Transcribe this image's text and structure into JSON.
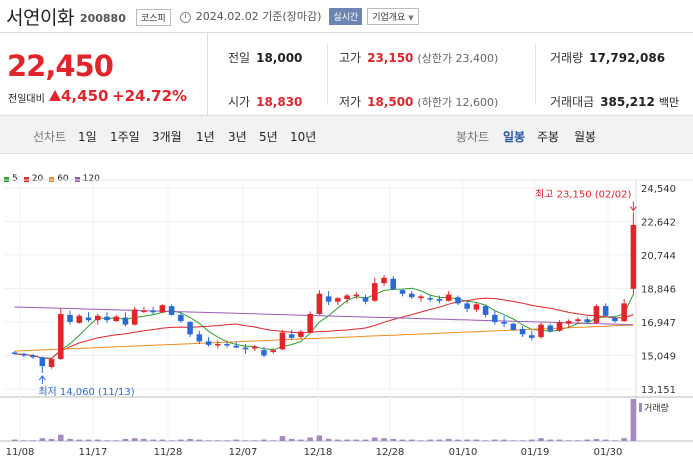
{
  "header": {
    "stock_name": "서연이화",
    "stock_code": "200880",
    "market": "코스피",
    "date": "2024.02.02 기준(장마감)",
    "realtime_label": "실시간",
    "company_info_label": "기업개요"
  },
  "price": {
    "current": "22,450",
    "change_label": "전일대비",
    "change": "4,450",
    "change_pct": "+24.72%"
  },
  "stats": {
    "prev_label": "전일",
    "prev": "18,000",
    "high_label": "고가",
    "high": "23,150",
    "upper_limit": "(상한가 23,400)",
    "volume_label": "거래량",
    "volume": "17,792,086",
    "open_label": "시가",
    "open": "18,830",
    "low_label": "저가",
    "low": "18,500",
    "lower_limit": "(하한가 12,600)",
    "value_label": "거래대금",
    "value": "385,212",
    "value_unit": "백만"
  },
  "period_bar": {
    "line_chart_label": "선차트",
    "periods": [
      "1일",
      "1주일",
      "3개월",
      "1년",
      "3년",
      "5년",
      "10년"
    ],
    "candle_chart_label": "봉차트",
    "candle_periods": [
      "일봉",
      "주봉",
      "월봉"
    ],
    "selected_candle": "일봉"
  },
  "legend": [
    {
      "label": "5",
      "color": "#2ca02c"
    },
    {
      "label": "20",
      "color": "#e3242b"
    },
    {
      "label": "60",
      "color": "#f08c1a"
    },
    {
      "label": "120",
      "color": "#9b59b6"
    }
  ],
  "chart_data": {
    "type": "candlestick",
    "y_ticks": [
      24540,
      22642,
      20744,
      18846,
      16947,
      15049,
      13151
    ],
    "ylim": [
      13151,
      24540
    ],
    "x_ticks": [
      "11/08",
      "11/17",
      "11/28",
      "12/07",
      "12/18",
      "12/28",
      "01/10",
      "01/19",
      "01/30"
    ],
    "high_annotation": "최고 23,150 (02/02)",
    "low_annotation": "최저 14,060 (11/13)",
    "volume_label": "거래량",
    "candles": [
      [
        15220,
        15300,
        15100,
        15150
      ],
      [
        15150,
        15200,
        14950,
        15050
      ],
      [
        15050,
        15150,
        14850,
        14950
      ],
      [
        14950,
        15000,
        14060,
        14450
      ],
      [
        14400,
        14900,
        14300,
        14850
      ],
      [
        14850,
        17700,
        14800,
        17400
      ],
      [
        17350,
        17600,
        16800,
        16950
      ],
      [
        16900,
        17400,
        16850,
        17300
      ],
      [
        17200,
        17500,
        16950,
        17050
      ],
      [
        17050,
        17400,
        16800,
        17300
      ],
      [
        17250,
        17500,
        16900,
        17050
      ],
      [
        17000,
        17350,
        16950,
        17250
      ],
      [
        17200,
        17500,
        16700,
        16800
      ],
      [
        16800,
        17800,
        16750,
        17650
      ],
      [
        17550,
        17800,
        17450,
        17600
      ],
      [
        17600,
        17800,
        17350,
        17500
      ],
      [
        17500,
        17950,
        17450,
        17900
      ],
      [
        17850,
        17950,
        17300,
        17350
      ],
      [
        17350,
        17500,
        16900,
        17000
      ],
      [
        16950,
        17000,
        16100,
        16250
      ],
      [
        16250,
        16450,
        15700,
        15850
      ],
      [
        15850,
        16100,
        15550,
        15650
      ],
      [
        15650,
        15900,
        15450,
        15700
      ],
      [
        15700,
        15900,
        15500,
        15650
      ],
      [
        15600,
        15850,
        15450,
        15500
      ],
      [
        15500,
        15700,
        15150,
        15400
      ],
      [
        15450,
        15650,
        15300,
        15550
      ],
      [
        15350,
        15550,
        14950,
        15050
      ],
      [
        15250,
        15450,
        15150,
        15350
      ],
      [
        15400,
        16500,
        15350,
        16350
      ],
      [
        16250,
        16500,
        15950,
        16050
      ],
      [
        16100,
        16500,
        16000,
        16400
      ],
      [
        16350,
        17550,
        16300,
        17400
      ],
      [
        17400,
        18750,
        17350,
        18550
      ],
      [
        18400,
        18700,
        17900,
        18100
      ],
      [
        18100,
        18350,
        17900,
        18300
      ],
      [
        18250,
        18550,
        18000,
        18450
      ],
      [
        18450,
        18650,
        18250,
        18500
      ],
      [
        18350,
        18500,
        17950,
        18100
      ],
      [
        18150,
        19450,
        18100,
        19150
      ],
      [
        19150,
        19600,
        19000,
        19450
      ],
      [
        19400,
        19550,
        18750,
        18800
      ],
      [
        18750,
        18800,
        18400,
        18550
      ],
      [
        18550,
        18700,
        18250,
        18350
      ],
      [
        18300,
        18500,
        18100,
        18400
      ],
      [
        18300,
        18450,
        18100,
        18250
      ],
      [
        18250,
        18450,
        18000,
        18150
      ],
      [
        18150,
        18700,
        18100,
        18500
      ],
      [
        18350,
        18450,
        17900,
        18000
      ],
      [
        18000,
        18200,
        17500,
        17700
      ],
      [
        17650,
        18050,
        17500,
        17950
      ],
      [
        17850,
        17950,
        17200,
        17350
      ],
      [
        17350,
        17600,
        16800,
        16950
      ],
      [
        16950,
        17300,
        16650,
        16850
      ],
      [
        16850,
        16900,
        16450,
        16500
      ],
      [
        16550,
        16700,
        16100,
        16250
      ],
      [
        16200,
        16450,
        15900,
        16050
      ],
      [
        16100,
        16900,
        16000,
        16800
      ],
      [
        16750,
        16850,
        16350,
        16450
      ],
      [
        16450,
        17050,
        16400,
        16950
      ],
      [
        16850,
        17100,
        16600,
        17000
      ],
      [
        17000,
        17200,
        16850,
        17100
      ],
      [
        17100,
        17250,
        16850,
        16950
      ],
      [
        16900,
        17950,
        16850,
        17850
      ],
      [
        17850,
        18000,
        17200,
        17300
      ],
      [
        17200,
        17250,
        16900,
        17000
      ],
      [
        17000,
        18250,
        16950,
        18000
      ],
      [
        18830,
        23150,
        18500,
        22450
      ]
    ],
    "volume": [
      2,
      1,
      1,
      4,
      3,
      9,
      3,
      2,
      2,
      2,
      1,
      1,
      3,
      4,
      3,
      2,
      2,
      1,
      2,
      3,
      2,
      1,
      1,
      1,
      2,
      1,
      1,
      2,
      1,
      7,
      3,
      2,
      5,
      8,
      3,
      2,
      2,
      2,
      2,
      5,
      4,
      3,
      2,
      2,
      1,
      2,
      2,
      3,
      2,
      2,
      2,
      1,
      2,
      2,
      1,
      1,
      2,
      4,
      2,
      2,
      1,
      1,
      2,
      3,
      2,
      1,
      4,
      60
    ]
  }
}
